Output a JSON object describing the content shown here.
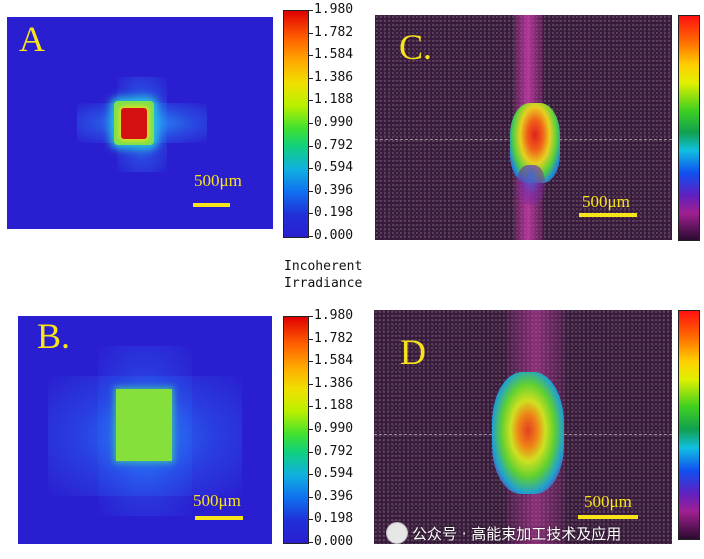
{
  "panels": [
    {
      "id": "A",
      "label": "A",
      "scale_label": "500μm"
    },
    {
      "id": "B",
      "label": "B.",
      "scale_label": "500μm"
    },
    {
      "id": "C",
      "label": "C.",
      "scale_label": "500μm"
    },
    {
      "id": "D",
      "label": "D",
      "scale_label": "500μm"
    }
  ],
  "colorbar": {
    "ticks": [
      "1.980",
      "1.782",
      "1.584",
      "1.386",
      "1.188",
      "0.990",
      "0.792",
      "0.594",
      "0.396",
      "0.198",
      "0.000"
    ],
    "title_line1": "Incoherent",
    "title_line2": "Irradiance"
  },
  "watermark": {
    "text": "公众号 · 高能束加工技术及应用"
  },
  "colors": {
    "sim_background": "#2a1fd0",
    "letter_yellow": "#f7e51a",
    "measured_background": "#3a1a3c"
  }
}
